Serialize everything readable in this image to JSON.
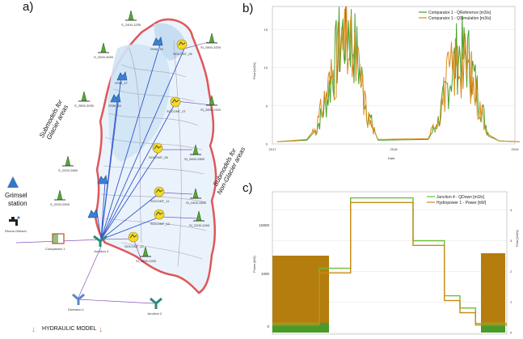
{
  "panels": {
    "a": "a)",
    "b": "b)",
    "c": "c)"
  },
  "map": {
    "station_line1": "Grimsel",
    "station_line2": "station",
    "station_icon_label": "Rhone-Gletsch",
    "comparator_label": "Comparator 1",
    "junction_label": "Junction 4",
    "diversion_label": "Diversion 1",
    "junction2_label": "Junction 2",
    "glacier_line1": "Submodels for",
    "glacier_line2": "Glacier areas",
    "nonglacier_line1": "Submodels for",
    "nonglacier_line2": "Non-Glacier areas",
    "footer": "HYDRAULIC MODEL",
    "glacier_submodels": [
      {
        "label": "S_2400-1205",
        "gsm": "GSM_19"
      },
      {
        "label": "S_2000-3000",
        "gsm": "GSM_17"
      },
      {
        "label": "S_2800-3000",
        "gsm": "GSM_16"
      },
      {
        "label": "S_2200-2800",
        "gsm": "GSM_21"
      },
      {
        "label": "S_2200-2500",
        "gsm": "GSM_14"
      }
    ],
    "snow_submodels": [
      {
        "label": "SI_2800-3200",
        "gsm": "SOCONT_05"
      },
      {
        "label": "SI_2800-2200",
        "gsm": "SOCONT_07"
      },
      {
        "label": "SI_2600-2800",
        "gsm": "SOCONT_06"
      },
      {
        "label": "SI_2400-2600",
        "gsm": "SOCONT_11"
      },
      {
        "label": "SI_2200-2400",
        "gsm": "SOCONT_13"
      },
      {
        "label": "SI_1800-2200",
        "gsm": "SOCONT_12"
      }
    ]
  },
  "chart_b": {
    "ylabel": "Flow [m3/s]",
    "xlabel": "Date",
    "legend": [
      "Comparator 1 - QReference [m3/s]",
      "Comparator 1 - QSimulation [m3/s]"
    ],
    "yticks": [
      "0",
      "5",
      "10",
      "15"
    ],
    "xticks": [
      "2017",
      "2018",
      "2019"
    ],
    "colors": {
      "reference": "#4aa02c",
      "simulation": "#d88a1a"
    }
  },
  "chart_c": {
    "ylabel_left": "Power [kW]",
    "ylabel_right": "Flow [m3/s]",
    "legend": [
      "Junction 4 - QDown [m3/s]",
      "Hydropower 1 - Power [kW]"
    ],
    "yticks_left": [
      "0",
      "1000",
      "10000"
    ],
    "yticks_right": [
      "0",
      "1",
      "2",
      "3",
      "4"
    ],
    "colors": {
      "flow": "#6bbf3a",
      "power": "#c98a14",
      "bar_top": "#b57d0e",
      "bar_bottom": "#4a9a2a"
    }
  },
  "chart_data": [
    {
      "type": "line",
      "title": "",
      "xlabel": "Date",
      "ylabel": "Flow [m3/s]",
      "x_range": [
        "2017",
        "2019"
      ],
      "ylim": [
        0,
        18
      ],
      "series": [
        {
          "name": "Comparator 1 - QReference [m3/s]",
          "x": [
            "2017-01",
            "2017-04",
            "2017-05",
            "2017-06",
            "2017-07",
            "2017-08",
            "2017-09",
            "2017-10",
            "2017-11",
            "2018-04",
            "2018-05",
            "2018-06",
            "2018-07",
            "2018-08",
            "2018-09",
            "2018-10",
            "2018-11",
            "2019-01"
          ],
          "values": [
            0.3,
            0.5,
            2,
            6,
            12,
            16,
            11,
            4,
            0.5,
            0.6,
            3,
            8,
            12,
            11,
            6,
            1,
            0.4,
            0.3
          ]
        },
        {
          "name": "Comparator 1 - QSimulation [m3/s]",
          "x": [
            "2017-01",
            "2017-04",
            "2017-05",
            "2017-06",
            "2017-07",
            "2017-08",
            "2017-09",
            "2017-10",
            "2017-11",
            "2018-04",
            "2018-05",
            "2018-06",
            "2018-07",
            "2018-08",
            "2018-09",
            "2018-10",
            "2018-11",
            "2019-01"
          ],
          "values": [
            0.3,
            0.6,
            2.5,
            7,
            11,
            13,
            10,
            3.5,
            0.6,
            0.7,
            3.5,
            9,
            11,
            10,
            5,
            1.2,
            0.4,
            0.3
          ]
        }
      ]
    },
    {
      "type": "line",
      "title": "",
      "ylabel": "Power [kW]",
      "y2label": "Flow [m3/s]",
      "series": [
        {
          "name": "Junction 4 - QDown [m3/s]",
          "axis": "right",
          "values": [
            0.3,
            0.3,
            0.3,
            2.1,
            2.1,
            4.4,
            4.4,
            4.4,
            4.4,
            3.0,
            3.0,
            1.2,
            0.8,
            0.3,
            0.3
          ]
        },
        {
          "name": "Hydropower 1 - Power [kW]",
          "axis": "right",
          "values": [
            0.3,
            0.3,
            0.3,
            2.0,
            2.0,
            4.3,
            4.3,
            4.3,
            4.3,
            2.9,
            2.9,
            1.1,
            0.7,
            0.3,
            0.3
          ]
        }
      ]
    }
  ]
}
